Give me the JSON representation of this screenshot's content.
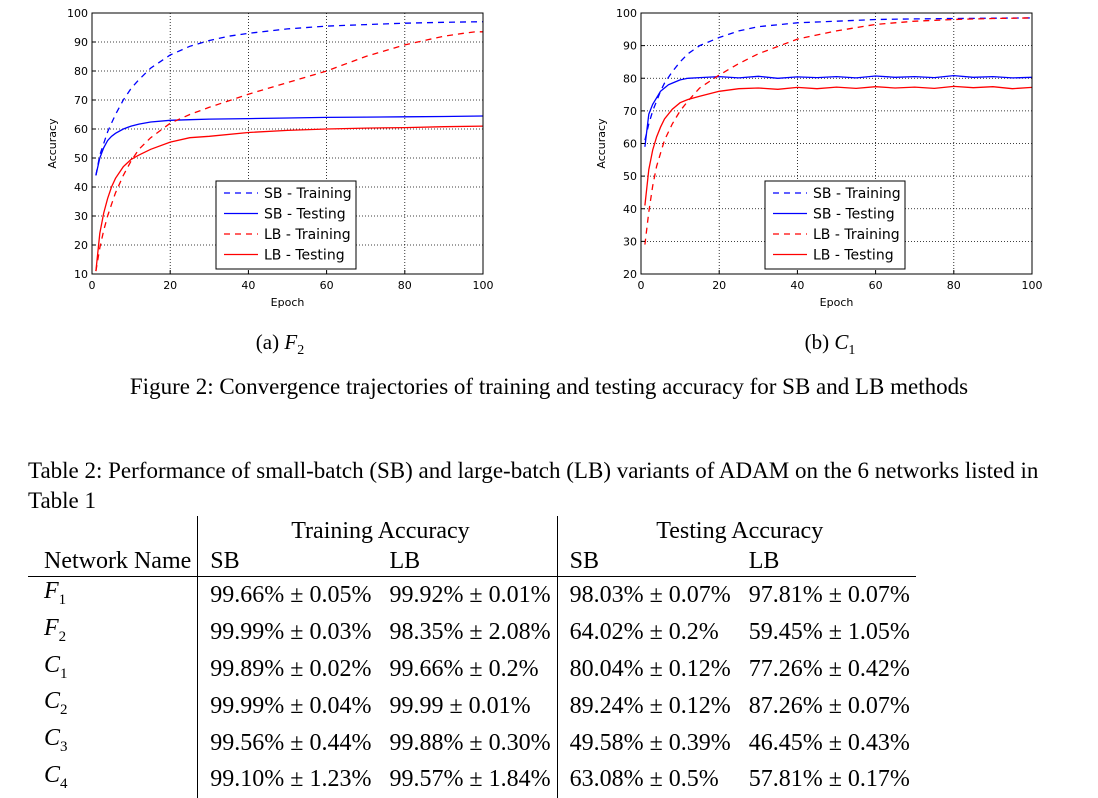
{
  "figure": {
    "subcaptions": [
      {
        "label": "(a)",
        "sym": "F",
        "sub": "2"
      },
      {
        "label": "(b)",
        "sym": "C",
        "sub": "1"
      }
    ],
    "caption": "Figure 2: Convergence trajectories of training and testing accuracy for SB and LB methods"
  },
  "chart_data": [
    {
      "type": "line",
      "xlabel": "Epoch",
      "ylabel": "Accuracy",
      "xlim": [
        0,
        100
      ],
      "ylim": [
        10,
        100
      ],
      "xticks": [
        0,
        20,
        40,
        60,
        80,
        100
      ],
      "yticks": [
        10,
        20,
        30,
        40,
        50,
        60,
        70,
        80,
        90,
        100
      ],
      "grid": true,
      "legend_position": "lower-center",
      "series": [
        {
          "name": "SB - Training",
          "color": "#0000ff",
          "dash": true,
          "x": [
            1,
            2,
            3,
            4,
            5,
            6,
            8,
            10,
            12,
            15,
            20,
            25,
            30,
            35,
            40,
            50,
            60,
            70,
            80,
            90,
            100
          ],
          "y": [
            44,
            51,
            55,
            59,
            62,
            65,
            70,
            74,
            77,
            81,
            85.5,
            88.5,
            90.5,
            92,
            93,
            94.5,
            95.5,
            96,
            96.5,
            96.8,
            97
          ]
        },
        {
          "name": "SB - Testing",
          "color": "#0000ff",
          "dash": false,
          "x": [
            1,
            2,
            3,
            4,
            5,
            6,
            8,
            10,
            12,
            15,
            20,
            25,
            30,
            40,
            50,
            60,
            70,
            80,
            90,
            100
          ],
          "y": [
            44,
            50,
            53.5,
            56,
            57.5,
            58.5,
            60,
            61,
            61.7,
            62.4,
            63,
            63.2,
            63.4,
            63.6,
            63.8,
            64,
            64.1,
            64.2,
            64.3,
            64.5
          ]
        },
        {
          "name": "LB - Training",
          "color": "#ff0000",
          "dash": true,
          "x": [
            1,
            2,
            3,
            4,
            5,
            6,
            8,
            10,
            12,
            15,
            20,
            25,
            30,
            40,
            50,
            60,
            70,
            80,
            85,
            90,
            95,
            98,
            100
          ],
          "y": [
            11,
            19,
            25,
            30,
            34,
            38,
            44,
            49,
            53,
            57,
            62,
            65,
            67.5,
            72,
            76,
            80,
            85,
            89,
            90.5,
            92,
            93,
            93.5,
            93.5
          ]
        },
        {
          "name": "LB - Testing",
          "color": "#ff0000",
          "dash": false,
          "x": [
            1,
            2,
            3,
            4,
            5,
            6,
            8,
            10,
            12,
            15,
            20,
            25,
            30,
            40,
            50,
            60,
            70,
            80,
            90,
            100
          ],
          "y": [
            11,
            24,
            31,
            36,
            40,
            43,
            47,
            49.5,
            51,
            53,
            55.5,
            57,
            57.5,
            58.8,
            59.5,
            60,
            60.3,
            60.5,
            60.8,
            61
          ]
        }
      ]
    },
    {
      "type": "line",
      "xlabel": "Epoch",
      "ylabel": "Accuracy",
      "xlim": [
        0,
        100
      ],
      "ylim": [
        20,
        100
      ],
      "xticks": [
        0,
        20,
        40,
        60,
        80,
        100
      ],
      "yticks": [
        20,
        30,
        40,
        50,
        60,
        70,
        80,
        90,
        100
      ],
      "grid": true,
      "legend_position": "lower-center",
      "series": [
        {
          "name": "SB - Training",
          "color": "#0000ff",
          "dash": true,
          "x": [
            1,
            2,
            3,
            4,
            5,
            6,
            8,
            10,
            12,
            15,
            20,
            25,
            30,
            40,
            50,
            60,
            70,
            80,
            90,
            100
          ],
          "y": [
            61,
            66,
            70,
            73,
            76,
            78.5,
            82,
            85,
            87.5,
            90,
            92.5,
            94.5,
            95.8,
            97,
            97.5,
            98,
            98.2,
            98.3,
            98.4,
            98.5
          ]
        },
        {
          "name": "SB - Testing",
          "color": "#0000ff",
          "dash": false,
          "x": [
            1,
            2,
            3,
            4,
            5,
            6,
            7,
            8,
            9,
            10,
            12,
            15,
            20,
            25,
            30,
            35,
            40,
            45,
            50,
            55,
            60,
            65,
            70,
            75,
            80,
            85,
            90,
            95,
            100
          ],
          "y": [
            59,
            69,
            72,
            74,
            76,
            77,
            78,
            78.5,
            79,
            79.5,
            80,
            80.2,
            80.5,
            80.1,
            80.6,
            80,
            80.4,
            80.2,
            80.5,
            80.1,
            80.7,
            80.3,
            80.5,
            80.2,
            80.8,
            80.3,
            80.5,
            80.1,
            80.3
          ]
        },
        {
          "name": "LB - Training",
          "color": "#ff0000",
          "dash": true,
          "x": [
            1,
            2,
            3,
            4,
            5,
            6,
            8,
            10,
            12,
            15,
            20,
            25,
            30,
            40,
            50,
            60,
            70,
            80,
            90,
            100
          ],
          "y": [
            29,
            39,
            47,
            53,
            57,
            61,
            66,
            70,
            73,
            77,
            81,
            84.5,
            87.5,
            92,
            94.5,
            96.5,
            97.5,
            98,
            98.3,
            98.5
          ]
        },
        {
          "name": "LB - Testing",
          "color": "#ff0000",
          "dash": false,
          "x": [
            1,
            2,
            3,
            4,
            5,
            6,
            8,
            10,
            12,
            15,
            20,
            25,
            30,
            35,
            40,
            45,
            50,
            55,
            60,
            65,
            70,
            75,
            80,
            85,
            90,
            95,
            100
          ],
          "y": [
            41,
            52,
            58,
            62,
            65,
            67.5,
            70.5,
            72.5,
            73.5,
            74.5,
            76,
            76.8,
            77,
            76.6,
            77.2,
            76.8,
            77.3,
            76.9,
            77.4,
            77,
            77.3,
            76.9,
            77.5,
            77.1,
            77.4,
            76.8,
            77.2
          ]
        }
      ]
    }
  ],
  "table": {
    "caption": "Table 2: Performance of small-batch (SB) and large-batch (LB) variants of ADAM on the 6 networks listed in Table 1",
    "group_headers": [
      "Training Accuracy",
      "Testing Accuracy"
    ],
    "col_headers": [
      "Network Name",
      "SB",
      "LB",
      "SB",
      "LB"
    ],
    "rows": [
      {
        "sym": "F",
        "sub": "1",
        "cells": [
          "99.66% ± 0.05%",
          "99.92% ± 0.01%",
          "98.03% ± 0.07%",
          "97.81% ± 0.07%"
        ]
      },
      {
        "sym": "F",
        "sub": "2",
        "cells": [
          "99.99% ± 0.03%",
          "98.35% ± 2.08%",
          "64.02% ± 0.2%",
          "59.45% ± 1.05%"
        ]
      },
      {
        "sym": "C",
        "sub": "1",
        "cells": [
          "99.89% ± 0.02%",
          "99.66% ± 0.2%",
          "80.04% ± 0.12%",
          "77.26% ± 0.42%"
        ]
      },
      {
        "sym": "C",
        "sub": "2",
        "cells": [
          "99.99% ± 0.04%",
          "99.99 ± 0.01%",
          "89.24% ± 0.12%",
          "87.26% ± 0.07%"
        ]
      },
      {
        "sym": "C",
        "sub": "3",
        "cells": [
          "99.56% ± 0.44%",
          "99.88% ± 0.30%",
          "49.58% ± 0.39%",
          "46.45% ± 0.43%"
        ]
      },
      {
        "sym": "C",
        "sub": "4",
        "cells": [
          "99.10% ± 1.23%",
          "99.57% ± 1.84%",
          "63.08% ± 0.5%",
          "57.81% ± 0.17%"
        ]
      }
    ]
  }
}
